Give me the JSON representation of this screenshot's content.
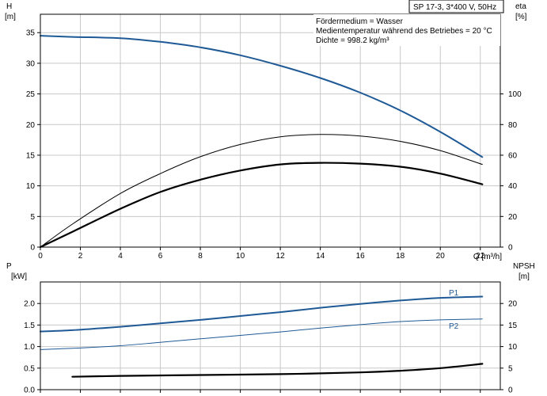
{
  "header": {
    "pump_label": "SP 17-3, 3*400 V, 50Hz",
    "notes": [
      "Fördermedium = Wasser",
      "Medientemperatur während des Betriebes = 20 °C",
      "Dichte = 998.2 kg/m³"
    ]
  },
  "chart_data": [
    {
      "type": "line",
      "panel": "top",
      "xlabel": "Q [m³/h]",
      "ylabel_left": [
        "H",
        "[m]"
      ],
      "ylabel_right": [
        "eta",
        "[%]"
      ],
      "xlim": [
        0,
        23
      ],
      "ylim_left": [
        0,
        38
      ],
      "ylim_right": [
        0,
        152
      ],
      "xticks": [
        0,
        2,
        4,
        6,
        8,
        10,
        12,
        14,
        16,
        18,
        20,
        22
      ],
      "yticks_left": [
        0,
        5,
        10,
        15,
        20,
        25,
        30,
        35
      ],
      "yticks_right": [
        0,
        20,
        40,
        60,
        80,
        100
      ],
      "grid": true,
      "series": [
        {
          "axis": "left",
          "color": "#1f5a96",
          "width": 2,
          "x": [
            0,
            1.6,
            4,
            6,
            8,
            10,
            12,
            14,
            16,
            18,
            20,
            22.1
          ],
          "y": [
            34.5,
            34.3,
            34.1,
            33.5,
            32.6,
            31.3,
            29.6,
            27.6,
            25.2,
            22.3,
            18.8,
            14.7
          ]
        },
        {
          "axis": "left",
          "color": "#1f5a96",
          "width": 1,
          "style": "dotted",
          "x": [
            0,
            1.6
          ],
          "y": [
            34.5,
            34.3
          ]
        },
        {
          "axis": "right",
          "color": "#000000",
          "width": 1,
          "x": [
            0,
            1.6,
            4,
            6,
            8,
            10,
            12,
            14,
            16,
            18,
            20,
            22.1
          ],
          "y": [
            0,
            15,
            35,
            48,
            59,
            67,
            72,
            73.5,
            72.5,
            69,
            63,
            54
          ]
        },
        {
          "axis": "right",
          "color": "#000000",
          "width": 2.2,
          "x": [
            0,
            1.6,
            4,
            6,
            8,
            10,
            12,
            14,
            16,
            18,
            20,
            22.1
          ],
          "y": [
            0,
            10,
            25,
            36,
            44,
            50,
            54,
            55,
            54.5,
            52.5,
            48,
            41
          ]
        }
      ]
    },
    {
      "type": "line",
      "panel": "bottom",
      "ylabel_left": [
        "P",
        "[kW]"
      ],
      "ylabel_right": [
        "NPSH",
        "[m]"
      ],
      "xlim": [
        0,
        23
      ],
      "ylim_left": [
        0,
        2.5
      ],
      "ylim_right": [
        0,
        25
      ],
      "yticks_left": [
        0.0,
        0.5,
        1.0,
        1.5,
        2.0
      ],
      "yticks_left_labels": [
        "0.0",
        "0.5",
        "1.0",
        "1.5",
        "2.0"
      ],
      "yticks_right": [
        0,
        5,
        10,
        15,
        20
      ],
      "grid": true,
      "series": [
        {
          "name": "P1",
          "axis": "left",
          "color": "#1f5a96",
          "width": 2,
          "x": [
            0,
            1.6,
            4,
            6,
            8,
            10,
            12,
            14,
            16,
            18,
            20,
            22.1
          ],
          "y": [
            1.35,
            1.38,
            1.46,
            1.54,
            1.62,
            1.71,
            1.8,
            1.9,
            1.99,
            2.07,
            2.13,
            2.16
          ]
        },
        {
          "name": "P2",
          "axis": "left",
          "color": "#1f5a96",
          "width": 1,
          "x": [
            0,
            1.6,
            4,
            6,
            8,
            10,
            12,
            14,
            16,
            18,
            20,
            22.1
          ],
          "y": [
            0.93,
            0.96,
            1.02,
            1.1,
            1.18,
            1.26,
            1.34,
            1.43,
            1.51,
            1.58,
            1.62,
            1.64
          ]
        },
        {
          "axis": "right",
          "color": "#000000",
          "width": 2.2,
          "x": [
            1.6,
            4,
            8,
            12,
            16,
            18,
            20,
            22.1
          ],
          "y": [
            3.0,
            3.2,
            3.4,
            3.6,
            4.0,
            4.4,
            5.0,
            6.0
          ]
        }
      ]
    }
  ]
}
